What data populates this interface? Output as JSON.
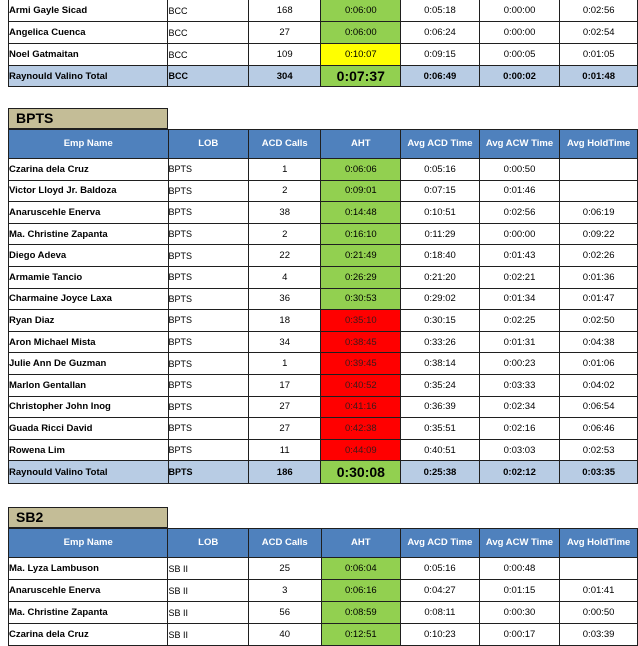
{
  "headers": {
    "emp_name": "Emp Name",
    "lob": "LOB",
    "acd_calls": "ACD Calls",
    "aht": "AHT",
    "avg_acd_time": "Avg ACD Time",
    "avg_acw_time": "Avg ACW Time",
    "avg_hold_time": "Avg HoldTime"
  },
  "bcc": {
    "rows": [
      {
        "name": "Armi Gayle Sicad",
        "lob": "BCC",
        "acd": "168",
        "aht": "0:06:00",
        "aht_status": "green",
        "acd_time": "0:05:18",
        "acw": "0:00:00",
        "hold": "0:02:56"
      },
      {
        "name": "Angelica Cuenca",
        "lob": "BCC",
        "acd": "27",
        "aht": "0:06:00",
        "aht_status": "green",
        "acd_time": "0:06:24",
        "acw": "0:00:00",
        "hold": "0:02:54"
      },
      {
        "name": "Noel Gatmaitan",
        "lob": "BCC",
        "acd": "109",
        "aht": "0:10:07",
        "aht_status": "yellow",
        "acd_time": "0:09:15",
        "acw": "0:00:05",
        "hold": "0:01:05"
      }
    ],
    "total": {
      "name": "Raynould Valino Total",
      "lob": "BCC",
      "acd": "304",
      "aht": "0:07:37",
      "acd_time": "0:06:49",
      "acw": "0:00:02",
      "hold": "0:01:48"
    }
  },
  "bpts": {
    "title": "BPTS",
    "rows": [
      {
        "name": "Czarina dela Cruz",
        "lob": "BPTS",
        "acd": "1",
        "aht": "0:06:06",
        "aht_status": "green",
        "acd_time": "0:05:16",
        "acw": "0:00:50",
        "hold": ""
      },
      {
        "name": "Victor Lloyd Jr. Baldoza",
        "lob": "BPTS",
        "acd": "2",
        "aht": "0:09:01",
        "aht_status": "green",
        "acd_time": "0:07:15",
        "acw": "0:01:46",
        "hold": ""
      },
      {
        "name": "Anaruscehle Enerva",
        "lob": "BPTS",
        "acd": "38",
        "aht": "0:14:48",
        "aht_status": "green",
        "acd_time": "0:10:51",
        "acw": "0:02:56",
        "hold": "0:06:19"
      },
      {
        "name": "Ma. Christine Zapanta",
        "lob": "BPTS",
        "acd": "2",
        "aht": "0:16:10",
        "aht_status": "green",
        "acd_time": "0:11:29",
        "acw": "0:00:00",
        "hold": "0:09:22"
      },
      {
        "name": "Diego Adeva",
        "lob": "BPTS",
        "acd": "22",
        "aht": "0:21:49",
        "aht_status": "green",
        "acd_time": "0:18:40",
        "acw": "0:01:43",
        "hold": "0:02:26"
      },
      {
        "name": "Armamie Tancio",
        "lob": "BPTS",
        "acd": "4",
        "aht": "0:26:29",
        "aht_status": "green",
        "acd_time": "0:21:20",
        "acw": "0:02:21",
        "hold": "0:01:36"
      },
      {
        "name": "Charmaine Joyce Laxa",
        "lob": "BPTS",
        "acd": "36",
        "aht": "0:30:53",
        "aht_status": "green",
        "acd_time": "0:29:02",
        "acw": "0:01:34",
        "hold": "0:01:47"
      },
      {
        "name": "Ryan Diaz",
        "lob": "BPTS",
        "acd": "18",
        "aht": "0:35:10",
        "aht_status": "red",
        "acd_time": "0:30:15",
        "acw": "0:02:25",
        "hold": "0:02:50"
      },
      {
        "name": "Aron Michael Mista",
        "lob": "BPTS",
        "acd": "34",
        "aht": "0:38:45",
        "aht_status": "red",
        "acd_time": "0:33:26",
        "acw": "0:01:31",
        "hold": "0:04:38"
      },
      {
        "name": "Julie Ann De Guzman",
        "lob": "BPTS",
        "acd": "1",
        "aht": "0:39:45",
        "aht_status": "red",
        "acd_time": "0:38:14",
        "acw": "0:00:23",
        "hold": "0:01:06"
      },
      {
        "name": "Marlon Gentallan",
        "lob": "BPTS",
        "acd": "17",
        "aht": "0:40:52",
        "aht_status": "red",
        "acd_time": "0:35:24",
        "acw": "0:03:33",
        "hold": "0:04:02"
      },
      {
        "name": "Christopher John Inog",
        "lob": "BPTS",
        "acd": "27",
        "aht": "0:41:16",
        "aht_status": "red",
        "acd_time": "0:36:39",
        "acw": "0:02:34",
        "hold": "0:06:54"
      },
      {
        "name": "Guada Ricci David",
        "lob": "BPTS",
        "acd": "27",
        "aht": "0:42:38",
        "aht_status": "red",
        "acd_time": "0:35:51",
        "acw": "0:02:16",
        "hold": "0:06:46"
      },
      {
        "name": "Rowena Lim",
        "lob": "BPTS",
        "acd": "11",
        "aht": "0:44:09",
        "aht_status": "red",
        "acd_time": "0:40:51",
        "acw": "0:03:03",
        "hold": "0:02:53"
      }
    ],
    "total": {
      "name": "Raynould Valino Total",
      "lob": "BPTS",
      "acd": "186",
      "aht": "0:30:08",
      "acd_time": "0:25:38",
      "acw": "0:02:12",
      "hold": "0:03:35"
    }
  },
  "sb2": {
    "title": "SB2",
    "rows": [
      {
        "name": "Ma. Lyza Lambuson",
        "lob": "SB II",
        "acd": "25",
        "aht": "0:06:04",
        "aht_status": "green",
        "acd_time": "0:05:16",
        "acw": "0:00:48",
        "hold": ""
      },
      {
        "name": "Anaruscehle Enerva",
        "lob": "SB II",
        "acd": "3",
        "aht": "0:06:16",
        "aht_status": "green",
        "acd_time": "0:04:27",
        "acw": "0:01:15",
        "hold": "0:01:41"
      },
      {
        "name": "Ma. Christine Zapanta",
        "lob": "SB II",
        "acd": "56",
        "aht": "0:08:59",
        "aht_status": "green",
        "acd_time": "0:08:11",
        "acw": "0:00:30",
        "hold": "0:00:50"
      },
      {
        "name": "Czarina dela Cruz",
        "lob": "SB II",
        "acd": "40",
        "aht": "0:12:51",
        "aht_status": "green",
        "acd_time": "0:10:23",
        "acw": "0:00:17",
        "hold": "0:03:39"
      }
    ]
  },
  "colors": {
    "green": "#92d050",
    "yellow": "#ffff00",
    "red": "#ff0000",
    "header": "#4f81bd",
    "total": "#b8cce4",
    "section": "#c4bd97"
  }
}
